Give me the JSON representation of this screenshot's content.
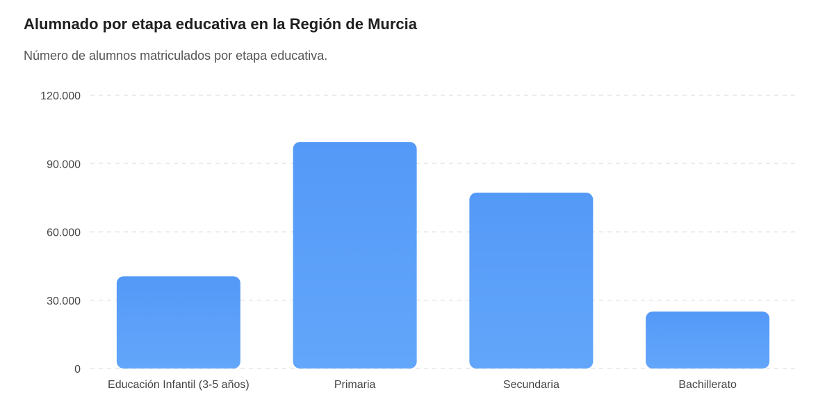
{
  "title": "Alumnado por etapa educativa en la Región de Murcia",
  "subtitle": "Número de alumnos matriculados por etapa educativa.",
  "chart_data": {
    "type": "bar",
    "categories": [
      "Educación Infantil (3-5 años)",
      "Primaria",
      "Secundaria",
      "Bachillerato"
    ],
    "values": [
      40500,
      99500,
      77200,
      25000
    ],
    "ylim": [
      0,
      120000
    ],
    "yticks": [
      0,
      30000,
      60000,
      90000,
      120000
    ],
    "ytick_labels": [
      "0",
      "30.000",
      "60.000",
      "90.000",
      "120.000"
    ],
    "grid": true,
    "bar_color": "#5b9ff8"
  }
}
